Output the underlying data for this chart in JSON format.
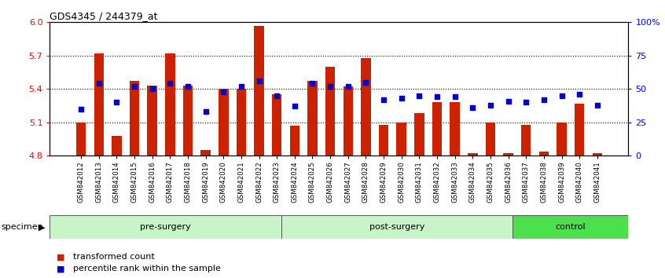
{
  "title": "GDS4345 / 244379_at",
  "categories": [
    "GSM842012",
    "GSM842013",
    "GSM842014",
    "GSM842015",
    "GSM842016",
    "GSM842017",
    "GSM842018",
    "GSM842019",
    "GSM842020",
    "GSM842021",
    "GSM842022",
    "GSM842023",
    "GSM842024",
    "GSM842025",
    "GSM842026",
    "GSM842027",
    "GSM842028",
    "GSM842029",
    "GSM842030",
    "GSM842031",
    "GSM842032",
    "GSM842033",
    "GSM842034",
    "GSM842035",
    "GSM842036",
    "GSM842037",
    "GSM842038",
    "GSM842039",
    "GSM842040",
    "GSM842041"
  ],
  "red_values": [
    5.1,
    5.72,
    4.98,
    5.47,
    5.43,
    5.72,
    5.43,
    4.85,
    5.4,
    5.4,
    5.97,
    5.35,
    5.07,
    5.47,
    5.6,
    5.42,
    5.68,
    5.08,
    5.1,
    5.18,
    5.28,
    5.28,
    4.82,
    5.1,
    4.82,
    5.08,
    4.84,
    5.1,
    5.27,
    4.82
  ],
  "blue_values": [
    35,
    54,
    40,
    52,
    50,
    54,
    52,
    33,
    48,
    52,
    56,
    45,
    37,
    54,
    52,
    52,
    55,
    42,
    43,
    45,
    44,
    44,
    36,
    38,
    41,
    40,
    42,
    45,
    46,
    38
  ],
  "groups": [
    {
      "label": "pre-surgery",
      "start": 0,
      "end": 12,
      "color": "#c0f0c0"
    },
    {
      "label": "post-surgery",
      "start": 12,
      "end": 24,
      "color": "#c0f0c0"
    },
    {
      "label": "control",
      "start": 24,
      "end": 30,
      "color": "#50dd50"
    }
  ],
  "ylim_left": [
    4.8,
    6.0
  ],
  "ylim_right": [
    0,
    100
  ],
  "yticks_left": [
    4.8,
    5.1,
    5.4,
    5.7,
    6.0
  ],
  "yticks_right": [
    0,
    25,
    50,
    75,
    100
  ],
  "ytick_labels_right": [
    "0",
    "25",
    "50",
    "75",
    "100%"
  ],
  "hlines": [
    5.1,
    5.4,
    5.7
  ],
  "bar_color": "#cc2200",
  "dot_color": "#0000cc",
  "bar_bottom": 4.8,
  "legend_items": [
    {
      "label": "transformed count",
      "color": "#cc2200"
    },
    {
      "label": "percentile rank within the sample",
      "color": "#0000cc"
    }
  ]
}
